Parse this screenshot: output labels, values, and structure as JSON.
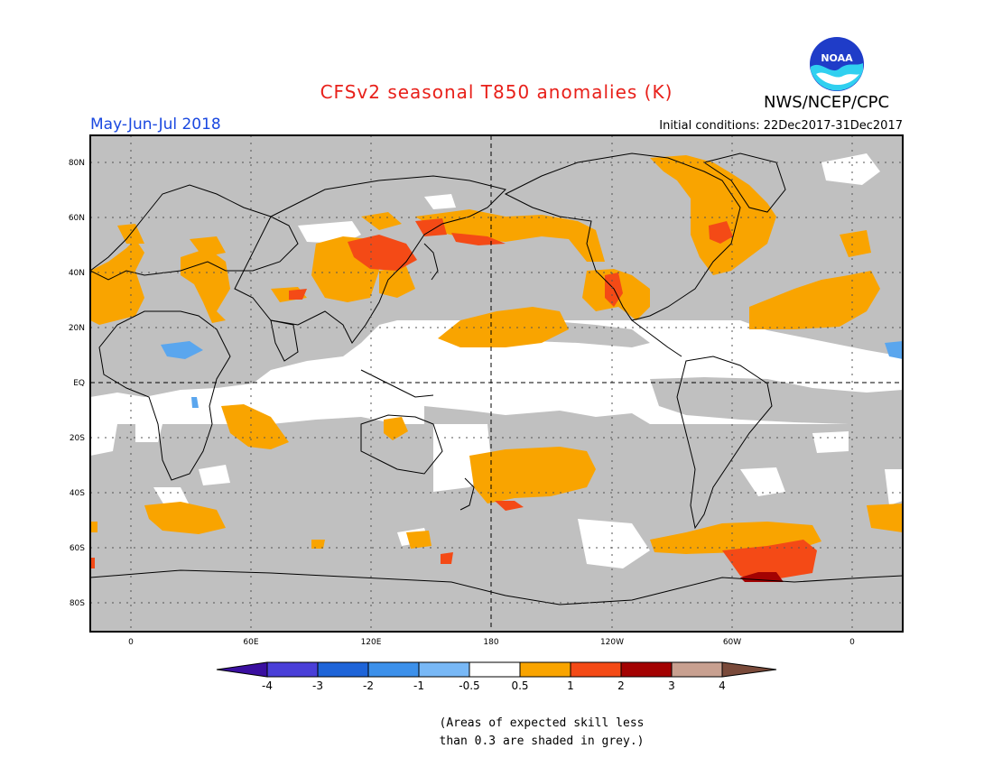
{
  "header": {
    "title": "CFSv2 seasonal T850 anomalies (K)",
    "season": "May-Jun-Jul 2018",
    "initial_conditions": "Initial conditions: 22Dec2017-31Dec2017",
    "agency": "NWS/NCEP/CPC",
    "logo_text": "NOAA"
  },
  "map": {
    "lat_labels": [
      "80N",
      "60N",
      "40N",
      "20N",
      "EQ",
      "20S",
      "40S",
      "60S",
      "80S"
    ],
    "lon_labels": [
      "0",
      "60E",
      "120E",
      "180",
      "120W",
      "60W",
      "0"
    ],
    "colors": {
      "land_outline": "#000000",
      "grey_low_skill": "#c0c0c0",
      "neutral": "#ffffff",
      "warm_0_5_1": "#f9a400",
      "warm_1_2": "#f44a16",
      "warm_2_3": "#a30202",
      "cool_neg1_neg0_5": "#5aa6ee"
    }
  },
  "colorbar": {
    "labels": [
      "-4",
      "-3",
      "-2",
      "-1",
      "-0.5",
      "0.5",
      "1",
      "2",
      "3",
      "4"
    ],
    "colors": [
      "#3a0fa0",
      "#4a3fd8",
      "#1e64d8",
      "#3c90ea",
      "#78b8f6",
      "#ffffff",
      "#f9a400",
      "#f44a16",
      "#a30202",
      "#c8a090",
      "#7a4a3a"
    ]
  },
  "footnote": {
    "line1": "(Areas of expected skill less",
    "line2": "than 0.3 are shaded in grey.)"
  }
}
